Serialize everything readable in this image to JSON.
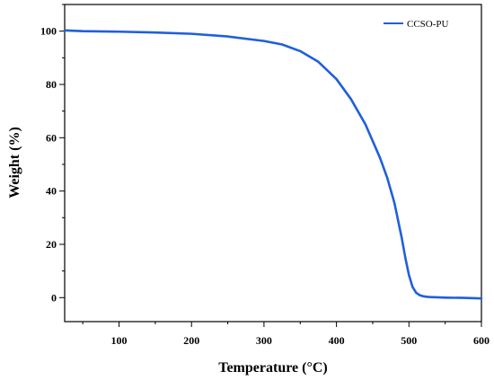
{
  "chart_data": {
    "type": "line",
    "title": "",
    "xlabel": "Temperature (°C)",
    "ylabel": "Weight  (%)",
    "xlim": [
      25,
      600
    ],
    "ylim": [
      -9,
      110
    ],
    "x_ticks": [
      100,
      200,
      300,
      400,
      500,
      600
    ],
    "x_tick_labels": [
      "100",
      "200",
      "300",
      "400",
      "500",
      "600"
    ],
    "y_ticks": [
      0,
      20,
      40,
      60,
      80,
      100
    ],
    "y_tick_labels": [
      "0",
      "20",
      "40",
      "60",
      "80",
      "100"
    ],
    "grid": false,
    "legend": {
      "position": "top-right"
    },
    "series": [
      {
        "name": "CCSO-PU",
        "color": "#1f5fdc",
        "x": [
          25,
          50,
          100,
          150,
          200,
          250,
          300,
          325,
          350,
          375,
          400,
          420,
          440,
          460,
          470,
          480,
          490,
          495,
          500,
          505,
          510,
          515,
          520,
          525,
          530,
          550,
          575,
          600
        ],
        "y": [
          100.3,
          100.0,
          99.8,
          99.5,
          99.0,
          98.0,
          96.3,
          95.0,
          92.5,
          88.5,
          82.0,
          74.5,
          65.0,
          52.5,
          45.0,
          35.5,
          22.5,
          15.0,
          8.5,
          4.0,
          1.8,
          0.9,
          0.5,
          0.3,
          0.2,
          0.0,
          -0.1,
          -0.3
        ]
      }
    ]
  }
}
